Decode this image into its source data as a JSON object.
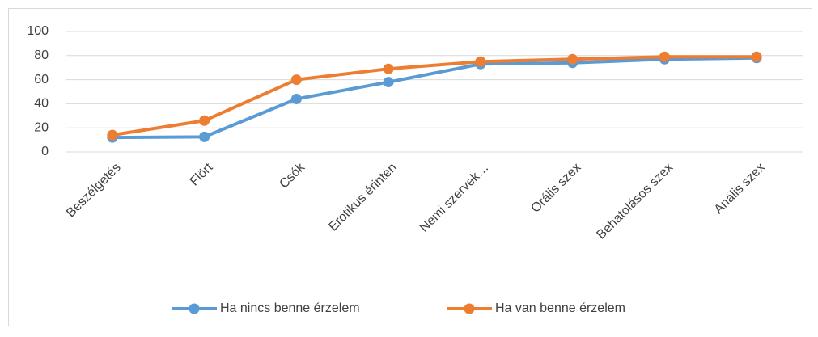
{
  "chart_data": {
    "type": "line",
    "categories": [
      "Beszélgetés",
      "Flört",
      "Csók",
      "Erotikus érintén",
      "Nemi szervek…",
      "Orális szex",
      "Behatolásos szex",
      "Anális szex"
    ],
    "series": [
      {
        "name": "Ha nincs benne érzelem",
        "color": "#5b9bd5",
        "values": [
          12,
          12.5,
          44,
          58,
          73,
          74,
          77,
          78
        ]
      },
      {
        "name": "Ha van benne érzelem",
        "color": "#ed7d31",
        "values": [
          14,
          26,
          60,
          69,
          75,
          77,
          79,
          79
        ]
      }
    ],
    "ylim": [
      0,
      100
    ],
    "yticks": [
      0,
      20,
      40,
      60,
      80,
      100
    ],
    "grid": true,
    "legend": "bottom"
  }
}
